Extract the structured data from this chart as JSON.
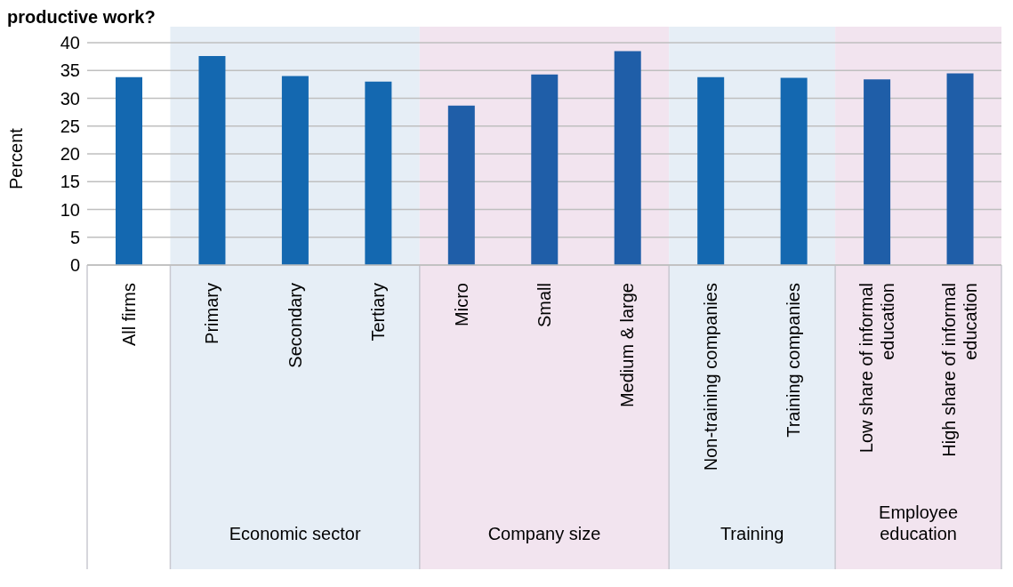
{
  "chart_data": {
    "type": "bar",
    "title": "productive work?",
    "ylabel": "Percent",
    "categories": [
      "All firms",
      "Primary",
      "Secondary",
      "Tertiary",
      "Micro",
      "Small",
      "Medium & large",
      "Non-training companies",
      "Training companies",
      "Low share of informal education",
      "High share of informal education"
    ],
    "values": [
      33.8,
      37.6,
      34.0,
      33.0,
      28.7,
      34.3,
      38.5,
      33.8,
      33.7,
      33.4,
      34.5
    ],
    "colors": [
      "#1468b0",
      "#1468b0",
      "#1468b0",
      "#1468b0",
      "#1f5ea8",
      "#1f5ea8",
      "#1f5ea8",
      "#1468b0",
      "#1468b0",
      "#1f5ea8",
      "#1f5ea8"
    ],
    "ylim": [
      0,
      40
    ],
    "yticks": [
      0,
      5,
      10,
      15,
      20,
      25,
      30,
      35,
      40
    ],
    "grid": "y",
    "bands": [
      {
        "axis": "x",
        "from": "Primary",
        "to": "Tertiary",
        "label": "Economic sector",
        "color": "#e6eef6"
      },
      {
        "axis": "x",
        "from": "Micro",
        "to": "Medium & large",
        "label": "Company size",
        "color": "#f2e4ef"
      },
      {
        "axis": "x",
        "from": "Non-training companies",
        "to": "Training companies",
        "label": "Training",
        "color": "#e6eef6"
      },
      {
        "axis": "x",
        "from": "Low share of informal education",
        "to": "High share of informal education",
        "label": "Employee education",
        "color": "#f2e4ef"
      }
    ]
  }
}
